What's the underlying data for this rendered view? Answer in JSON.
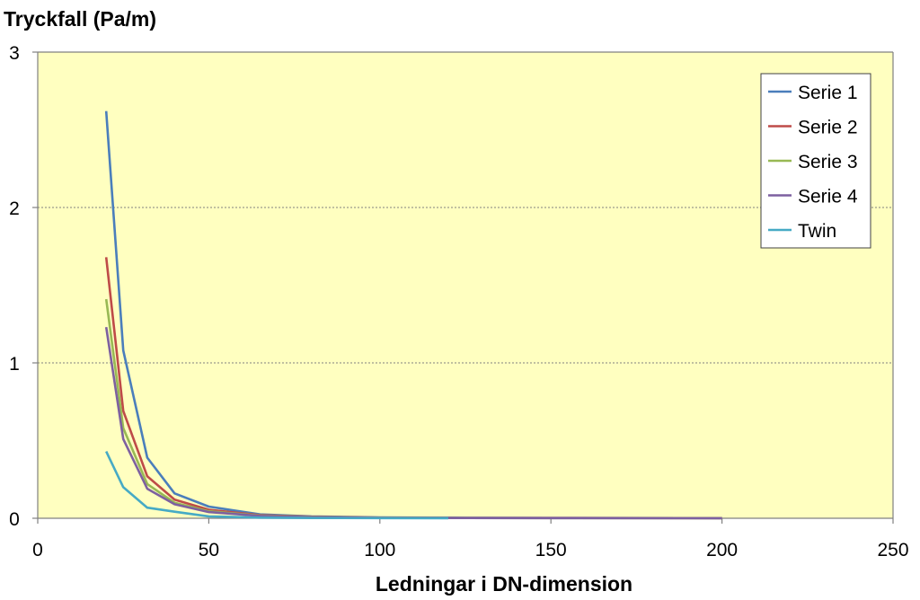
{
  "chart_data": {
    "type": "line",
    "title": "",
    "ylabel": "Tryckfall (Pa/m)",
    "xlabel": "Ledningar i DN-dimension",
    "xlim": [
      0,
      250
    ],
    "ylim": [
      0,
      3
    ],
    "xticks": [
      "0",
      "50",
      "100",
      "150",
      "200",
      "250"
    ],
    "yticks": [
      "0",
      "1",
      "2",
      "3"
    ],
    "grid": "horizontal dotted",
    "legend_position": "top-right",
    "plot_background": "#FFFFC0",
    "series": [
      {
        "name": "Serie 1",
        "color": "#4A7EBB",
        "x": [
          20,
          25,
          32,
          40,
          50,
          65,
          80,
          100,
          125,
          150,
          200
        ],
        "y": [
          2.62,
          1.08,
          0.39,
          0.16,
          0.075,
          0.025,
          0.012,
          0.005,
          0.003,
          0.002,
          0.001
        ]
      },
      {
        "name": "Serie 2",
        "color": "#BE4B48",
        "x": [
          20,
          25,
          32,
          40,
          50,
          65,
          80,
          100,
          125,
          150,
          200
        ],
        "y": [
          1.68,
          0.69,
          0.27,
          0.12,
          0.055,
          0.02,
          0.01,
          0.004,
          0.002,
          0.0015,
          0.001
        ]
      },
      {
        "name": "Serie 3",
        "color": "#98B954",
        "x": [
          20,
          25,
          32,
          40,
          50,
          65,
          80,
          100,
          125,
          150,
          200
        ],
        "y": [
          1.41,
          0.58,
          0.22,
          0.1,
          0.045,
          0.017,
          0.008,
          0.003,
          0.002,
          0.001,
          0.0005
        ]
      },
      {
        "name": "Serie 4",
        "color": "#7D60A0",
        "x": [
          20,
          25,
          32,
          40,
          50,
          65,
          80,
          100,
          125,
          150,
          200
        ],
        "y": [
          1.23,
          0.51,
          0.19,
          0.09,
          0.04,
          0.015,
          0.007,
          0.003,
          0.0015,
          0.001,
          0.0005
        ]
      },
      {
        "name": "Twin",
        "color": "#46AAC5",
        "x": [
          20,
          25,
          32,
          40,
          50,
          65,
          80,
          100,
          120
        ],
        "y": [
          0.43,
          0.2,
          0.068,
          0.042,
          0.012,
          0.004,
          0.002,
          0.001,
          0.0005
        ]
      }
    ]
  }
}
